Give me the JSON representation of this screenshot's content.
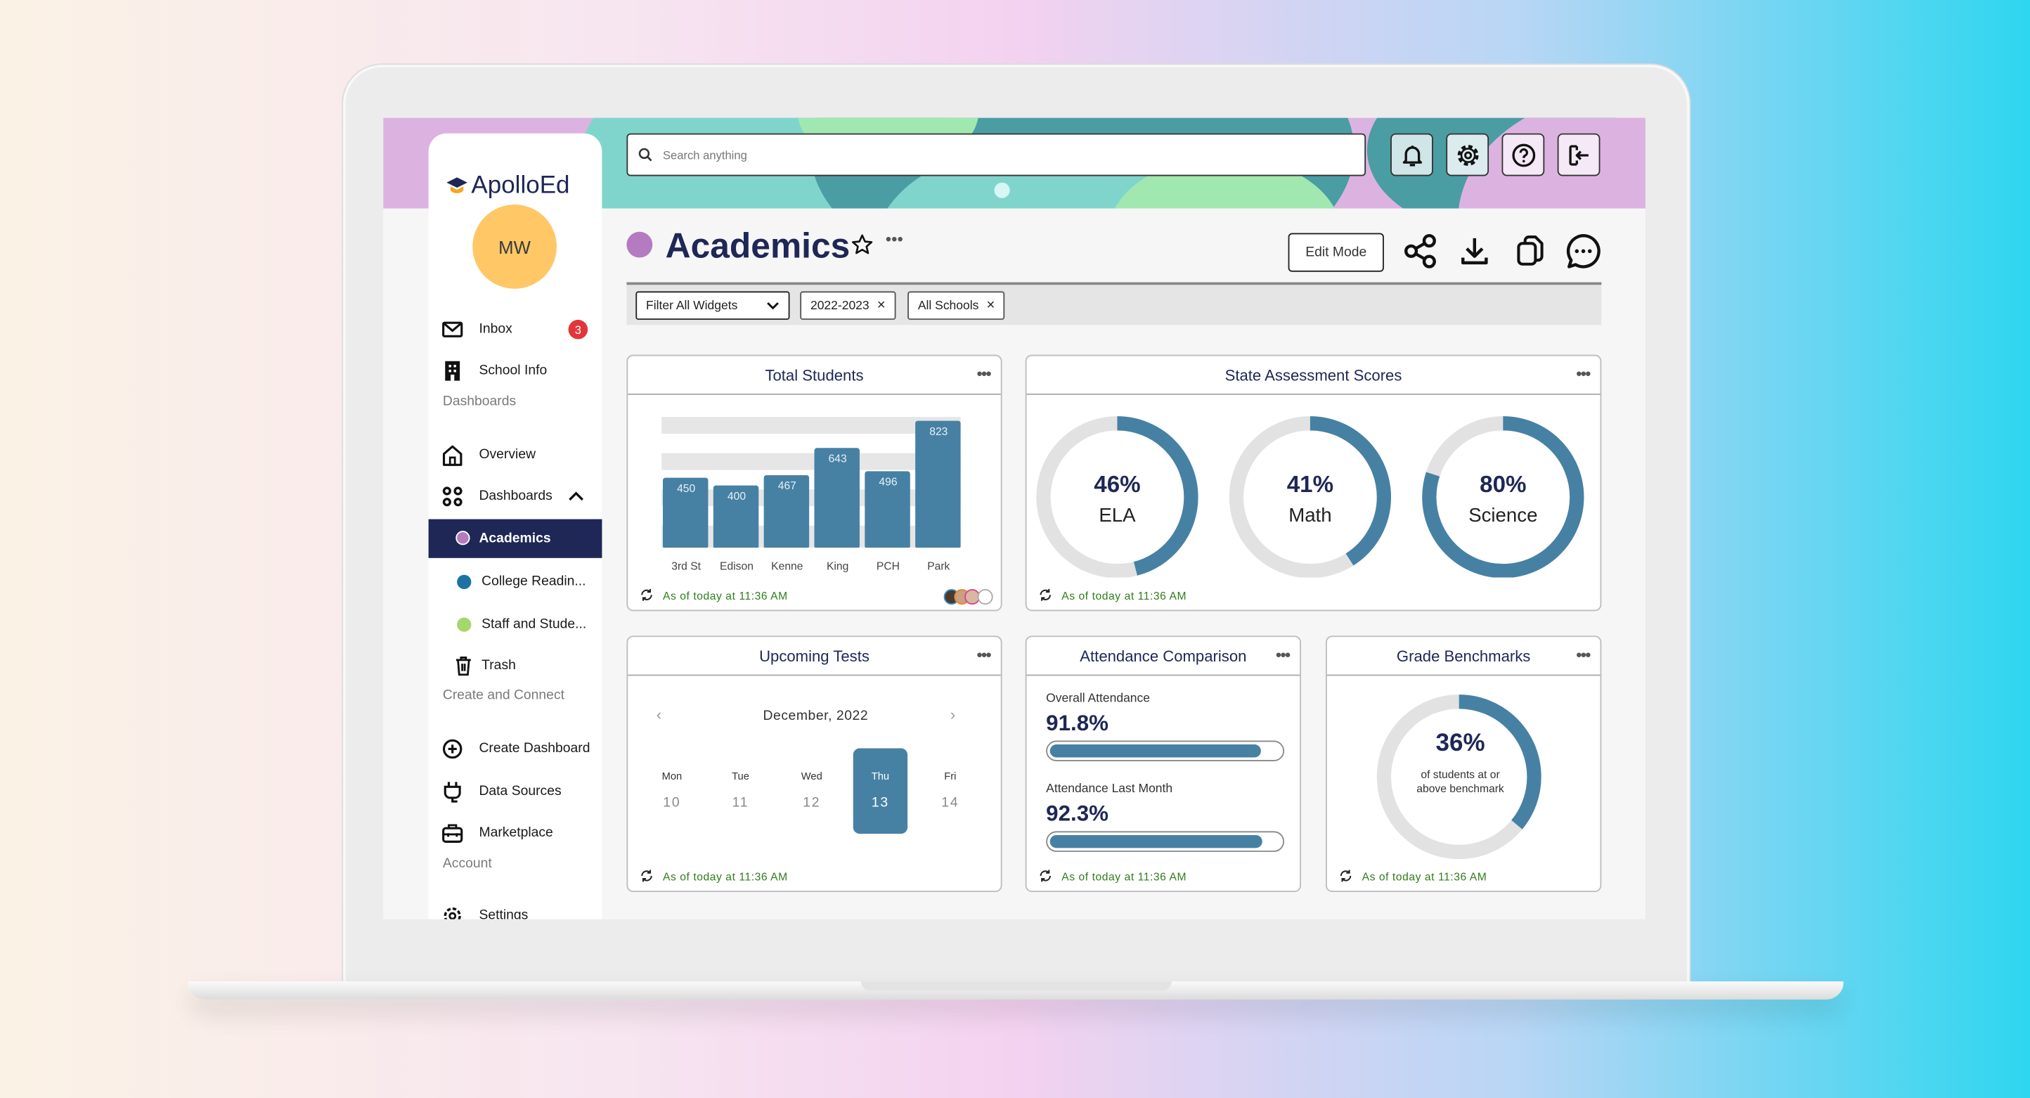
{
  "app": {
    "name": "ApolloEd"
  },
  "user": {
    "initials": "MW"
  },
  "search": {
    "placeholder": "Search anything"
  },
  "topbar": {
    "icons": [
      "bell-icon",
      "gear-icon",
      "help-icon",
      "logout-icon"
    ]
  },
  "sidebar": {
    "inbox": {
      "label": "Inbox",
      "badge": "3"
    },
    "school_info": "School Info",
    "section_dashboards": "Dashboards",
    "overview": "Overview",
    "dashboards": "Dashboards",
    "dashboard_items": [
      {
        "label": "Academics",
        "color": "#b57bc0",
        "selected": true
      },
      {
        "label": "College Readin...",
        "color": "#1a73a3"
      },
      {
        "label": "Staff and Stude...",
        "color": "#a6d76a"
      }
    ],
    "trash": "Trash",
    "section_create": "Create and Connect",
    "create_dashboard": "Create Dashboard",
    "data_sources": "Data Sources",
    "marketplace": "Marketplace",
    "section_account": "Account",
    "settings": "Settings"
  },
  "page": {
    "title": "Academics",
    "color": "#b57bc0",
    "edit_mode": "Edit Mode"
  },
  "filters": {
    "filter_all": "Filter All Widgets",
    "chips": [
      "2022-2023",
      "All Schools"
    ]
  },
  "timestamp": "As of today at 11:36 AM",
  "widgets": {
    "total_students": {
      "title": "Total Students"
    },
    "state_scores": {
      "title": "State Assessment Scores"
    },
    "upcoming_tests": {
      "title": "Upcoming Tests",
      "month": "December, 2022",
      "days": [
        {
          "name": "Mon",
          "num": "10"
        },
        {
          "name": "Tue",
          "num": "11"
        },
        {
          "name": "Wed",
          "num": "12"
        },
        {
          "name": "Thu",
          "num": "13",
          "selected": true
        },
        {
          "name": "Fri",
          "num": "14"
        }
      ]
    },
    "attendance": {
      "title": "Attendance Comparison",
      "rows": [
        {
          "label": "Overall Attendance",
          "value": "91.8%",
          "fraction": 0.918
        },
        {
          "label": "Attendance Last Month",
          "value": "92.3%",
          "fraction": 0.923
        }
      ]
    },
    "grade_benchmarks": {
      "title": "Grade Benchmarks",
      "value": "36%",
      "caption1": "of students at or",
      "caption2": "above benchmark"
    }
  },
  "chart_data": [
    {
      "type": "bar",
      "categories": [
        "3rd St",
        "Edison",
        "Kenne",
        "King",
        "PCH",
        "Park"
      ],
      "values": [
        450,
        400,
        467,
        643,
        496,
        823
      ],
      "ylim": [
        0,
        840
      ],
      "color": "#4681a4"
    },
    {
      "type": "pie",
      "variant": "donut",
      "categories": [
        "ELA",
        "Math",
        "Science"
      ],
      "values": [
        46,
        41,
        80
      ],
      "color": "#4681a4",
      "track": "#e2e2e2"
    },
    {
      "type": "pie",
      "variant": "donut",
      "categories": [
        "at or above benchmark"
      ],
      "values": [
        36
      ],
      "color": "#4681a4"
    }
  ]
}
